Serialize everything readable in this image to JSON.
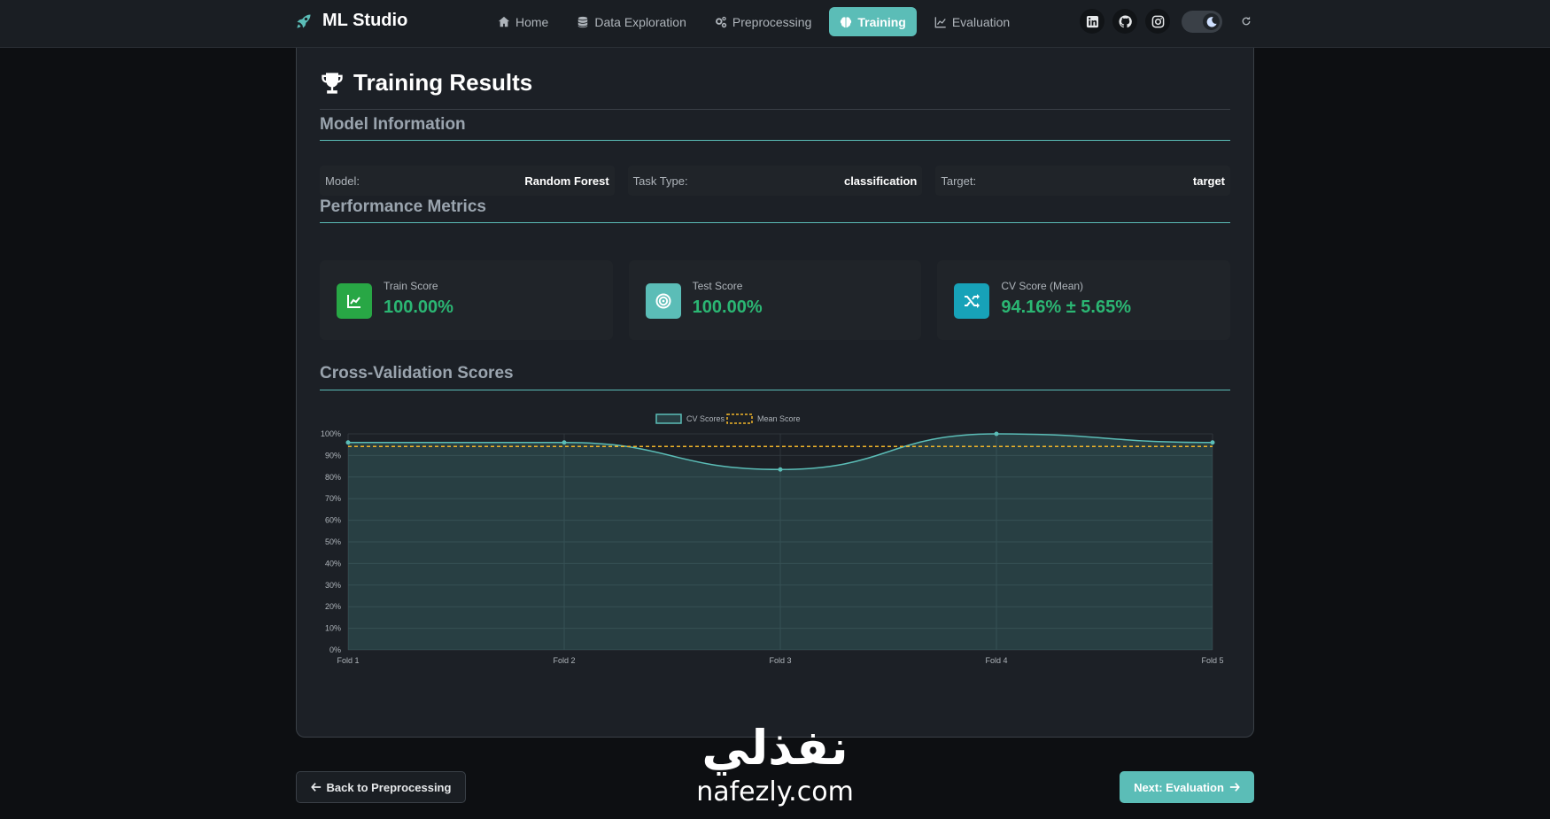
{
  "app": {
    "brand": "ML Studio"
  },
  "nav": {
    "items": [
      {
        "label": "Home",
        "icon": "home-icon"
      },
      {
        "label": "Data Exploration",
        "icon": "database-icon"
      },
      {
        "label": "Preprocessing",
        "icon": "gears-icon"
      },
      {
        "label": "Training",
        "icon": "brain-icon",
        "active": true
      },
      {
        "label": "Evaluation",
        "icon": "line-chart-icon"
      }
    ]
  },
  "social": [
    "linkedin-icon",
    "github-icon",
    "instagram-icon"
  ],
  "card": {
    "title": "Training Results",
    "model_info": {
      "heading": "Model Information",
      "model_label": "Model:",
      "model_value": "Random Forest",
      "task_label": "Task Type:",
      "task_value": "classification",
      "target_label": "Target:",
      "target_value": "target"
    },
    "performance": {
      "heading": "Performance Metrics",
      "train_label": "Train Score",
      "train_value": "100.00%",
      "test_label": "Test Score",
      "test_value": "100.00%",
      "cv_label": "CV Score (Mean)",
      "cv_value": "94.16% ± 5.65%"
    },
    "cv_heading": "Cross-Validation Scores"
  },
  "buttons": {
    "back": "Back to Preprocessing",
    "next": "Next: Evaluation"
  },
  "watermark": {
    "logo": "نفذلي",
    "domain": "nafezly.com"
  },
  "colors": {
    "accent": "#5bbdb7",
    "success": "#2bb673",
    "mean_line": "#f0b429",
    "train_icon_bg": "#28a745",
    "test_icon_bg": "#5bbdb7",
    "cv_icon_bg": "#17a2b8"
  },
  "chart_data": {
    "type": "line",
    "categories": [
      "Fold 1",
      "Fold 2",
      "Fold 3",
      "Fold 4",
      "Fold 5"
    ],
    "series": [
      {
        "name": "CV Scores",
        "values": [
          96,
          96,
          83.5,
          100,
          96
        ]
      },
      {
        "name": "Mean Score",
        "values": [
          94.16,
          94.16,
          94.16,
          94.16,
          94.16
        ]
      }
    ],
    "ylim": [
      0,
      100
    ],
    "yticks": [
      "0%",
      "10%",
      "20%",
      "30%",
      "40%",
      "50%",
      "60%",
      "70%",
      "80%",
      "90%",
      "100%"
    ],
    "grid": true,
    "legend": "top-center"
  }
}
